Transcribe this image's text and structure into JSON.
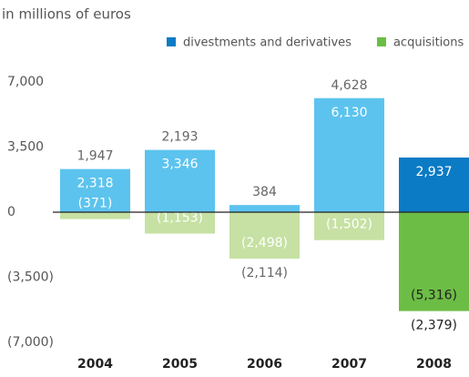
{
  "chart_data": {
    "type": "bar",
    "subtitle": "in millions of euros",
    "categories": [
      "2004",
      "2005",
      "2006",
      "2007",
      "2008"
    ],
    "series": [
      {
        "name": "divestments and derivatives",
        "color": "#0a7bc4",
        "colors": [
          "#5cc3ee",
          "#5cc3ee",
          "#5cc3ee",
          "#5cc3ee",
          "#0a7bc4"
        ],
        "values": [
          2318,
          3346,
          384,
          6130,
          2937
        ],
        "value_labels": [
          "2,318",
          "3,346",
          "384",
          "6,130",
          "2,937"
        ]
      },
      {
        "name": "acquisitions",
        "color": "#6cbd45",
        "colors": [
          "#c6e1a3",
          "#c6e1a3",
          "#c6e1a3",
          "#c6e1a3",
          "#6cbd45"
        ],
        "values": [
          -371,
          -1153,
          -2498,
          -1502,
          -5316
        ],
        "value_labels": [
          "(371)",
          "(1,153)",
          "(2,498)",
          "(1,502)",
          "(5,316)"
        ]
      }
    ],
    "totals": {
      "values": [
        1947,
        2193,
        -2114,
        4628,
        -2379
      ],
      "value_labels": [
        "1,947",
        "2,193",
        "(2,114)",
        "4,628",
        "(2,379)"
      ]
    },
    "ylim": [
      -7000,
      7000
    ],
    "yticks": [
      {
        "value": 7000,
        "label": "7,000"
      },
      {
        "value": 3500,
        "label": "3,500"
      },
      0,
      {
        "value": -3500,
        "label": "(3,500)"
      },
      {
        "value": -7000,
        "label": "(7,000)"
      }
    ],
    "grid": false
  }
}
